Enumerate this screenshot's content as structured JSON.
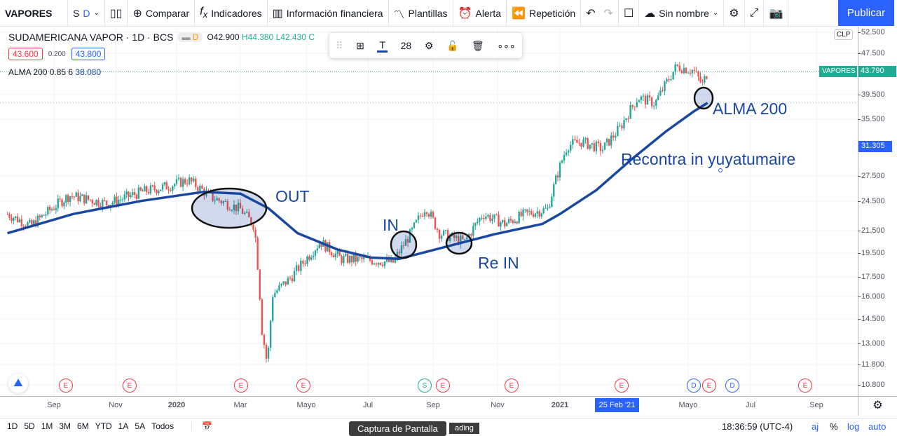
{
  "toolbar": {
    "symbol": "VAPORES",
    "interval_s": "S",
    "interval_d": "D",
    "compare": "Comparar",
    "indicators": "Indicadores",
    "financials": "Información financiera",
    "templates": "Plantillas",
    "alert": "Alerta",
    "replay": "Repetición",
    "layout_name": "Sin nombre",
    "publish": "Publicar"
  },
  "legend": {
    "title": "SUDAMERICANA VAPOR · 1D · BCS",
    "badge": "D",
    "open": "O42.900",
    "high": "H44.380",
    "low": "L42.430",
    "close_trunc": "C",
    "bid": "43.600",
    "spread": "0.200",
    "ask": "43.800",
    "indicator": "ALMA 200 0.85 6",
    "indicator_value": "38.080"
  },
  "floating_toolbar": {
    "font_size": "28"
  },
  "price_axis": {
    "currency": "CLP",
    "labels": [
      "52.500",
      "47.500",
      "39.500",
      "35.500",
      "27.500",
      "24.500",
      "21.500",
      "19.500",
      "17.500",
      "16.000",
      "14.500",
      "13.000",
      "11.800",
      "10.800"
    ],
    "symbol_tag": "VAPORES",
    "last_price": "43.790",
    "crosshair_price": "31.305",
    "scale": "log"
  },
  "time_axis": {
    "labels": [
      "Sep",
      "Nov",
      "2020",
      "Mar",
      "Mayo",
      "Jul",
      "Sep",
      "Nov",
      "2021",
      "Mayo",
      "Jul",
      "Sep"
    ],
    "crosshair_date": "25 Feb '21"
  },
  "events": [
    {
      "t": "E",
      "c": "#f23645"
    },
    {
      "t": "E",
      "c": "#f23645"
    },
    {
      "t": "E",
      "c": "#f23645"
    },
    {
      "t": "E",
      "c": "#f23645"
    },
    {
      "t": "S",
      "c": "#22ab94"
    },
    {
      "t": "E",
      "c": "#f23645"
    },
    {
      "t": "E",
      "c": "#f23645"
    },
    {
      "t": "E",
      "c": "#f23645"
    },
    {
      "t": "D",
      "c": "#2962ff"
    },
    {
      "t": "E",
      "c": "#f23645"
    },
    {
      "t": "D",
      "c": "#2962ff"
    },
    {
      "t": "E",
      "c": "#f23645"
    }
  ],
  "annotations": {
    "out": "OUT",
    "in": "IN",
    "re_in": "Re IN",
    "alma": "ALMA  200",
    "recontra": "Recontra in yuyatumaire"
  },
  "bottom": {
    "ranges": [
      "1D",
      "5D",
      "1M",
      "3M",
      "6M",
      "YTD",
      "1A",
      "5A",
      "Todos"
    ],
    "tooltip": "Captura de Pantalla",
    "tooltip_behind": "ading",
    "clock": "18:36:59 (UTC-4)",
    "adj": "aj",
    "percent": "%",
    "log": "log",
    "auto": "auto"
  },
  "colors": {
    "up": "#26a69a",
    "down": "#ef5350",
    "alma": "#1a47a0",
    "accent": "#2962ff"
  },
  "chart_data": {
    "type": "candlestick",
    "scale": "log",
    "price_path": [
      [
        "2019-07-17",
        23.2
      ],
      [
        "2019-08-09",
        22.0
      ],
      [
        "2019-09-16",
        25.2
      ],
      [
        "2019-10-24",
        24.3
      ],
      [
        "2019-11-27",
        25.6
      ],
      [
        "2019-12-24",
        26.3
      ],
      [
        "2020-01-12",
        27.0
      ],
      [
        "2020-02-03",
        25.0
      ],
      [
        "2020-03-01",
        23.7
      ],
      [
        "2020-03-14",
        22.0
      ],
      [
        "2020-03-21",
        13.8
      ],
      [
        "2020-03-26",
        11.8
      ],
      [
        "2020-03-31",
        16.2
      ],
      [
        "2020-04-17",
        17.5
      ],
      [
        "2020-05-15",
        20.5
      ],
      [
        "2020-06-04",
        19.0
      ],
      [
        "2020-07-01",
        18.9
      ],
      [
        "2020-07-25",
        18.7
      ],
      [
        "2020-08-11",
        21.3
      ],
      [
        "2020-08-25",
        24.0
      ],
      [
        "2020-09-07",
        21.3
      ],
      [
        "2020-10-01",
        20.5
      ],
      [
        "2020-10-18",
        23.2
      ],
      [
        "2020-11-08",
        22.2
      ],
      [
        "2020-11-28",
        23.2
      ],
      [
        "2020-12-20",
        23.7
      ],
      [
        "2021-01-01",
        28.7
      ],
      [
        "2021-01-08",
        31.5
      ],
      [
        "2021-01-21",
        32.0
      ],
      [
        "2021-02-10",
        31.0
      ],
      [
        "2021-02-26",
        34.0
      ],
      [
        "2021-03-15",
        39.0
      ],
      [
        "2021-03-31",
        38.0
      ],
      [
        "2021-04-20",
        44.8
      ],
      [
        "2021-05-06",
        44.0
      ],
      [
        "2021-05-15",
        41.3
      ],
      [
        "2021-05-20",
        43.79
      ]
    ],
    "alma_200": [
      [
        "2019-07-17",
        21.3
      ],
      [
        "2019-09-20",
        23.2
      ],
      [
        "2019-11-27",
        24.6
      ],
      [
        "2020-01-26",
        25.6
      ],
      [
        "2020-03-01",
        25.4
      ],
      [
        "2020-03-27",
        23.8
      ],
      [
        "2020-04-23",
        21.3
      ],
      [
        "2020-06-01",
        19.8
      ],
      [
        "2020-07-04",
        19.1
      ],
      [
        "2020-07-31",
        19.0
      ],
      [
        "2020-09-07",
        19.9
      ],
      [
        "2020-10-29",
        21.2
      ],
      [
        "2020-12-15",
        22.2
      ],
      [
        "2021-01-01",
        23.2
      ],
      [
        "2021-02-04",
        25.8
      ],
      [
        "2021-03-09",
        29.6
      ],
      [
        "2021-04-10",
        33.5
      ],
      [
        "2021-05-06",
        36.6
      ],
      [
        "2021-05-20",
        38.08
      ]
    ]
  }
}
